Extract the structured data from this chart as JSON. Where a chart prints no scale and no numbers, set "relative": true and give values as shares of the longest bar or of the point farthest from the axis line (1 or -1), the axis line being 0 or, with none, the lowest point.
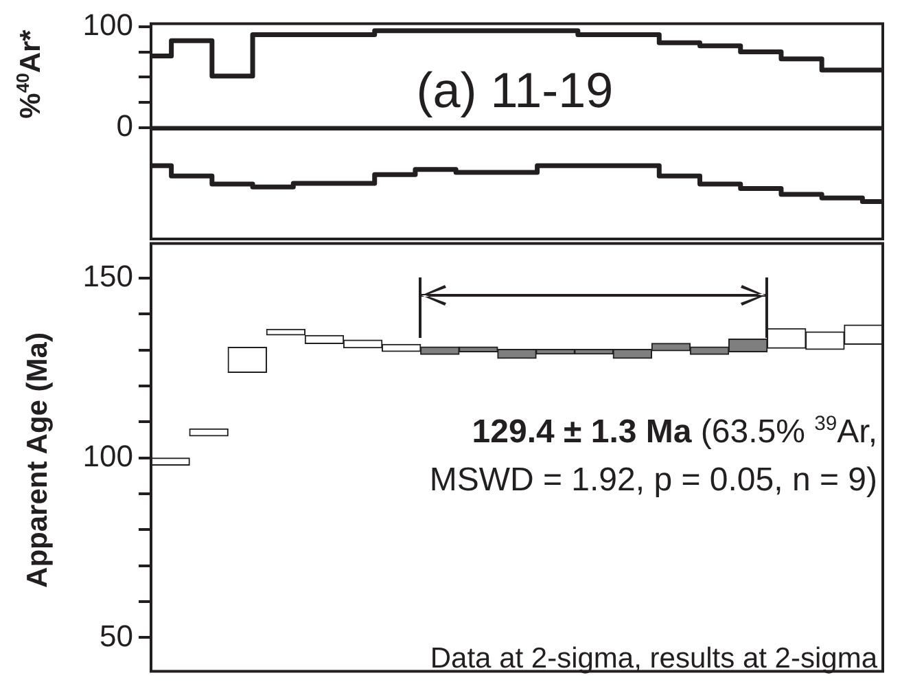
{
  "chart_data": [
    {
      "type": "step",
      "ylabel": "%$^{40}$Ar*",
      "annotations": [
        "(a) 11-19"
      ],
      "categories": [
        null,
        null,
        null,
        null,
        null,
        null,
        null,
        null,
        null,
        null,
        null,
        null,
        null,
        null,
        null,
        null,
        null,
        null,
        null
      ],
      "ylim": [
        0,
        103
      ],
      "yticks": [
        0,
        {
          "value": 25,
          "label": null
        },
        {
          "value": 50,
          "label": null
        },
        {
          "value": 75,
          "label": null
        },
        100
      ],
      "tick_labels": "y",
      "series": [
        {
          "color": "#231f20",
          "values": [
            71,
            86,
            51,
            92,
            92,
            92,
            96,
            96,
            96,
            96,
            96,
            92,
            92,
            84,
            81,
            75,
            68,
            57,
            57
          ]
        }
      ]
    },
    {
      "type": "step",
      "relative": true,
      "categories": [
        null,
        null,
        null,
        null,
        null,
        null,
        null,
        null,
        null,
        null,
        null,
        null,
        null,
        null,
        null,
        null,
        null,
        null,
        null
      ],
      "tick_labels": false,
      "series": [
        {
          "color": "#231f20",
          "values": [
            1,
            0.86,
            0.75,
            0.71,
            0.76,
            0.76,
            0.88,
            0.95,
            0.91,
            0.91,
            1,
            1,
            1,
            0.86,
            0.75,
            0.69,
            0.61,
            0.56,
            0.51
          ]
        }
      ]
    },
    {
      "type": "bar",
      "ylabel": "Apparent Age (Ma)",
      "categories": [
        null,
        null,
        null,
        null,
        null,
        null,
        null,
        null,
        null,
        null,
        null,
        null,
        null,
        null,
        null,
        null,
        null,
        null,
        null
      ],
      "base": [
        98.0,
        106.1,
        123.8,
        134.2,
        131.8,
        130.6,
        129.6,
        128.8,
        129.5,
        127.7,
        128.9,
        128.9,
        127.7,
        129.8,
        128.8,
        129.5,
        130.5,
        130.2,
        131.6
      ],
      "values": [
        2.0,
        2.0,
        7.0,
        1.6,
        2.3,
        2.2,
        2.0,
        2.1,
        1.4,
        2.5,
        1.3,
        1.3,
        2.5,
        2.1,
        2.1,
        3.6,
        5.5,
        4.9,
        5.4
      ],
      "colors": [
        "#ffffff",
        "#ffffff",
        "#ffffff",
        "#ffffff",
        "#ffffff",
        "#ffffff",
        "#ffffff",
        "#7f7f7f",
        "#7f7f7f",
        "#7f7f7f",
        "#7f7f7f",
        "#7f7f7f",
        "#7f7f7f",
        "#7f7f7f",
        "#7f7f7f",
        "#7f7f7f",
        "#ffffff",
        "#ffffff",
        "#ffffff"
      ],
      "ylim": [
        40.6,
        159.7
      ],
      "yticks": [
        50,
        {
          "value": 60,
          "label": null
        },
        {
          "value": 70,
          "label": null
        },
        {
          "value": 80,
          "label": null
        },
        {
          "value": 90,
          "label": null
        },
        100,
        {
          "value": 110,
          "label": null
        },
        {
          "value": 120,
          "label": null
        },
        {
          "value": 130,
          "label": null
        },
        {
          "value": 140,
          "label": null
        },
        150
      ],
      "tick_labels": "y",
      "annotations": [
        "129.4 ± 1.3 Ma",
        "(63.5% $^{39}$Ar, MSWD = 1.92, p = 0.05, n = 9)",
        "Data at 2-sigma, results at 2-sigma"
      ]
    }
  ]
}
